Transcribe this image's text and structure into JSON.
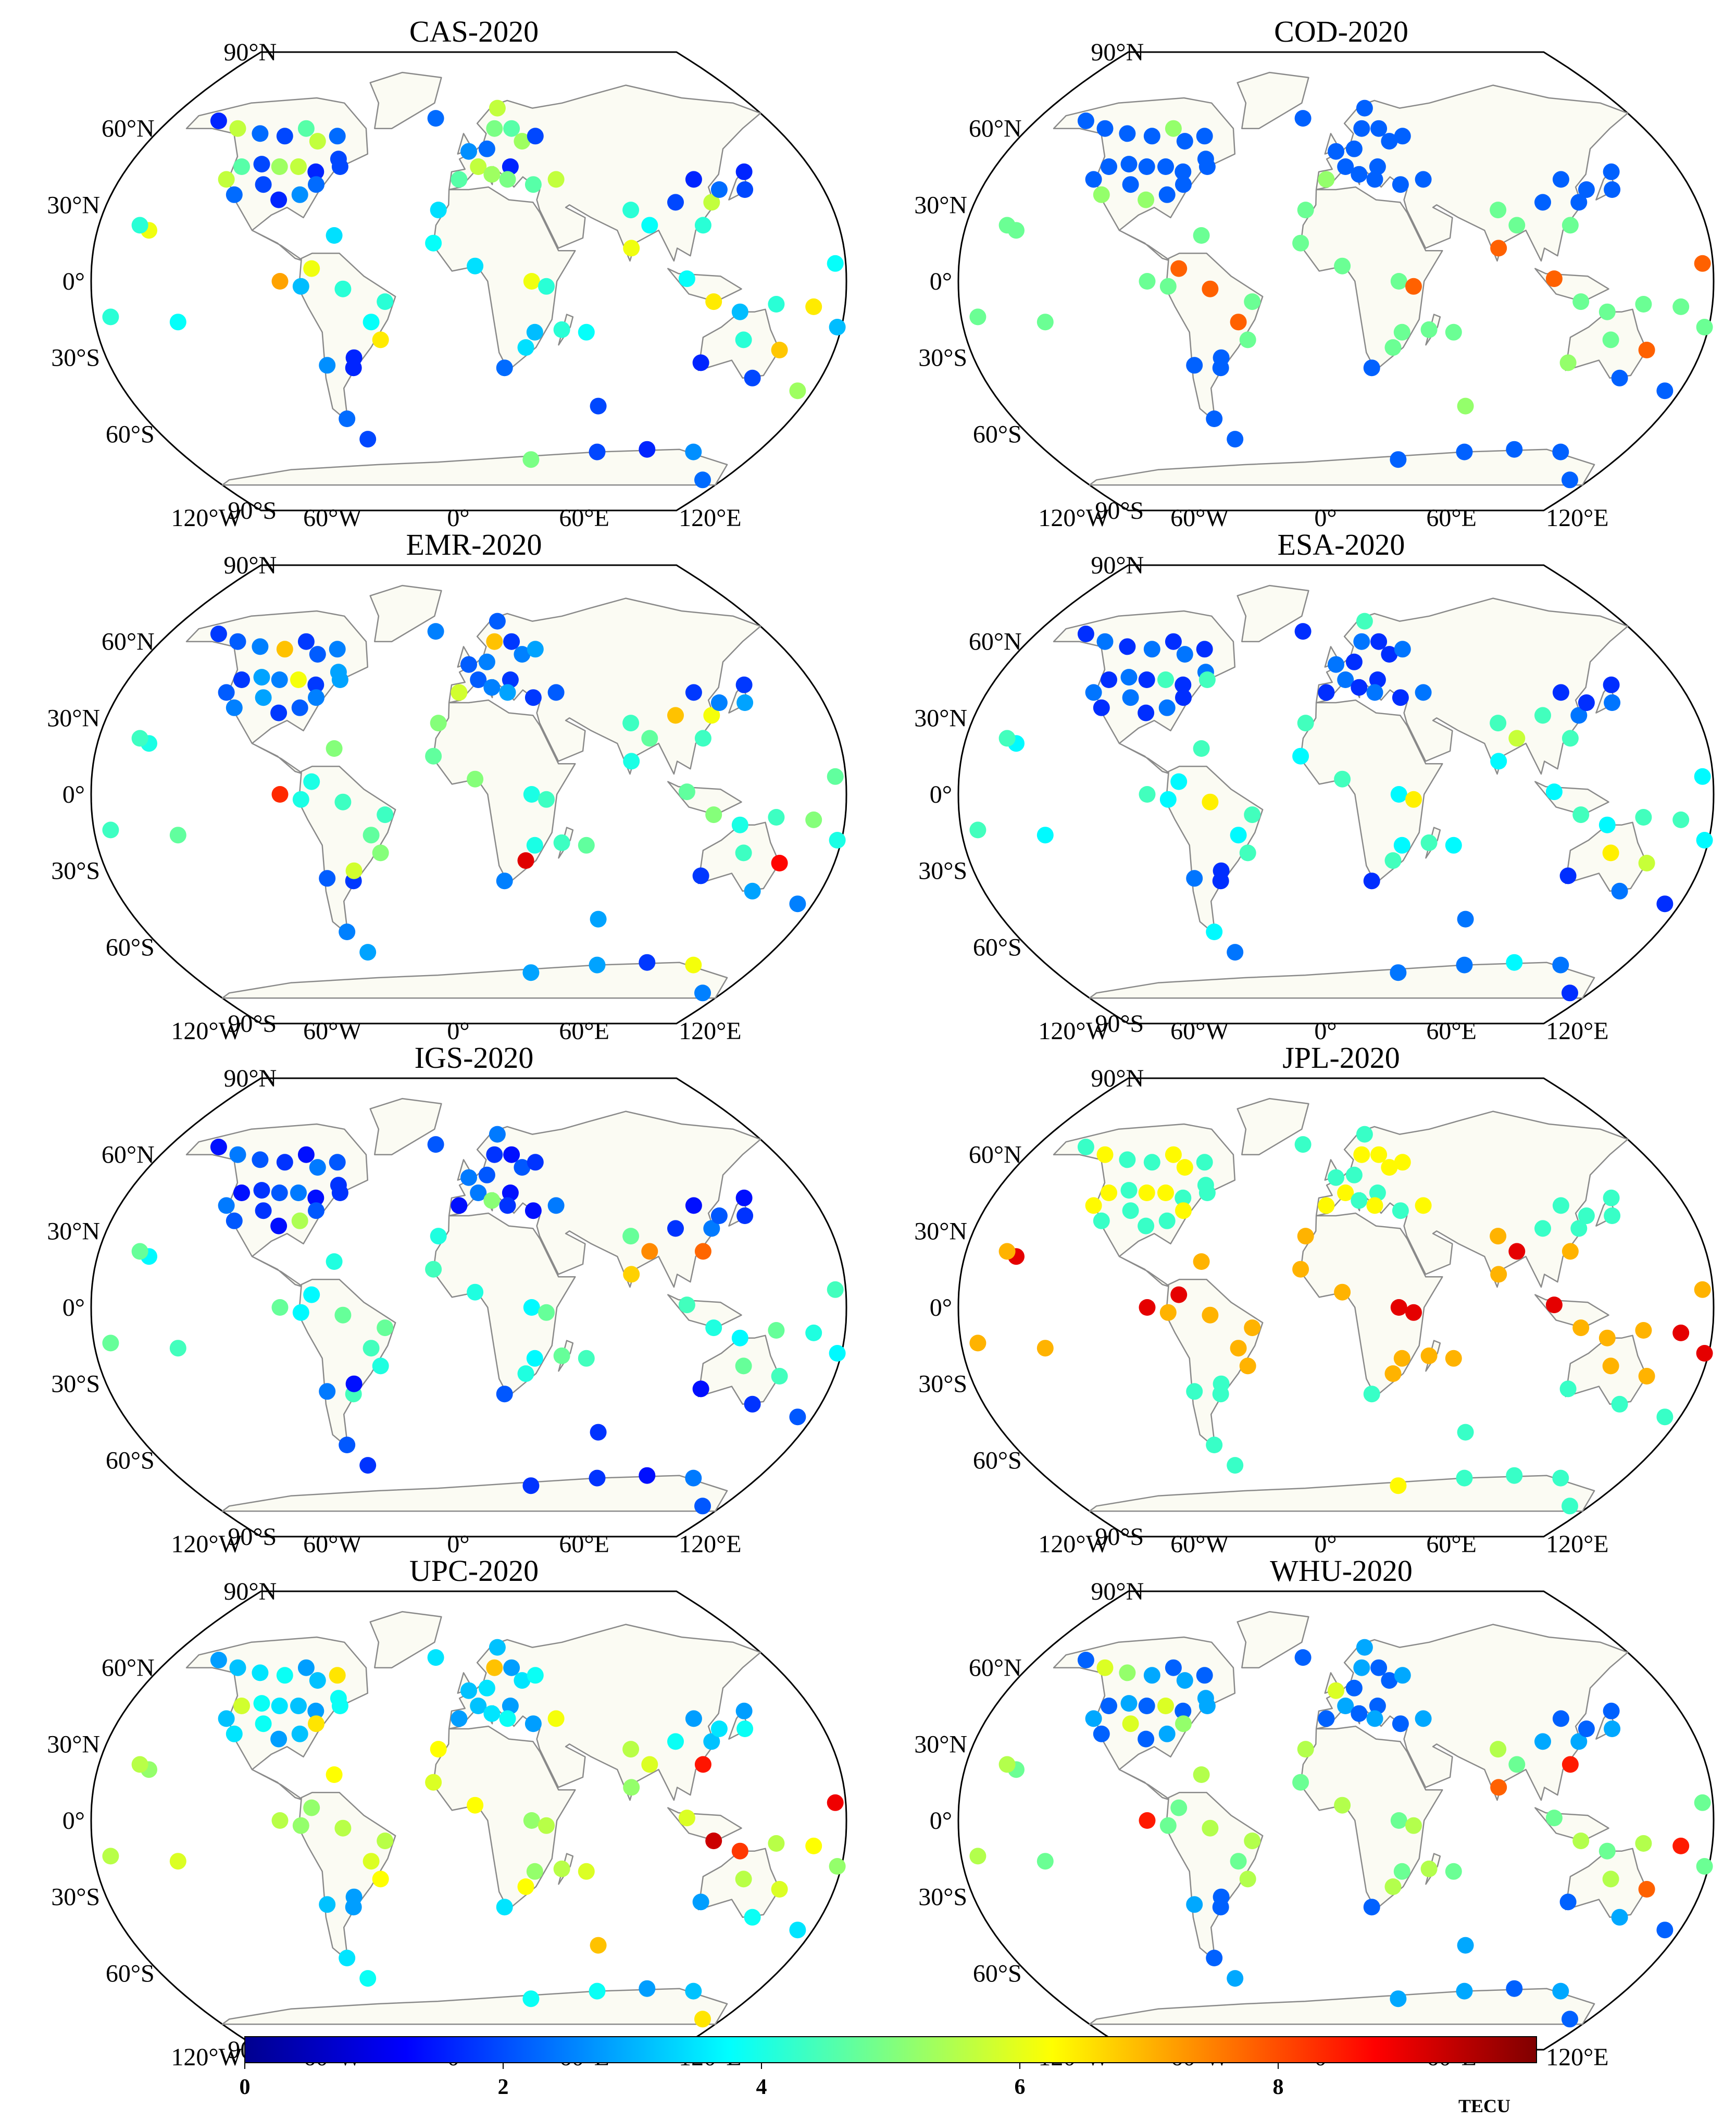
{
  "figure": {
    "panels": [
      {
        "title": "CAS-2020"
      },
      {
        "title": "COD-2020"
      },
      {
        "title": "EMR-2020"
      },
      {
        "title": "ESA-2020"
      },
      {
        "title": "IGS-2020"
      },
      {
        "title": "JPL-2020"
      },
      {
        "title": "UPC-2020"
      },
      {
        "title": "WHU-2020"
      }
    ],
    "lat_labels": [
      "90°N",
      "60°N",
      "30°N",
      "0°",
      "30°S",
      "60°S",
      "90°S"
    ],
    "lon_labels": [
      "120°W",
      "60°W",
      "0°",
      "60°E",
      "120°E"
    ],
    "colorbar": {
      "ticks": [
        "0",
        "2",
        "4",
        "6",
        "8"
      ],
      "unit": "TECU",
      "range": [
        0,
        10
      ],
      "colormap": "jet"
    },
    "colors": {
      "land": "#fbfbf3",
      "coast": "#8a8a8a",
      "frame": "#000000"
    }
  }
}
